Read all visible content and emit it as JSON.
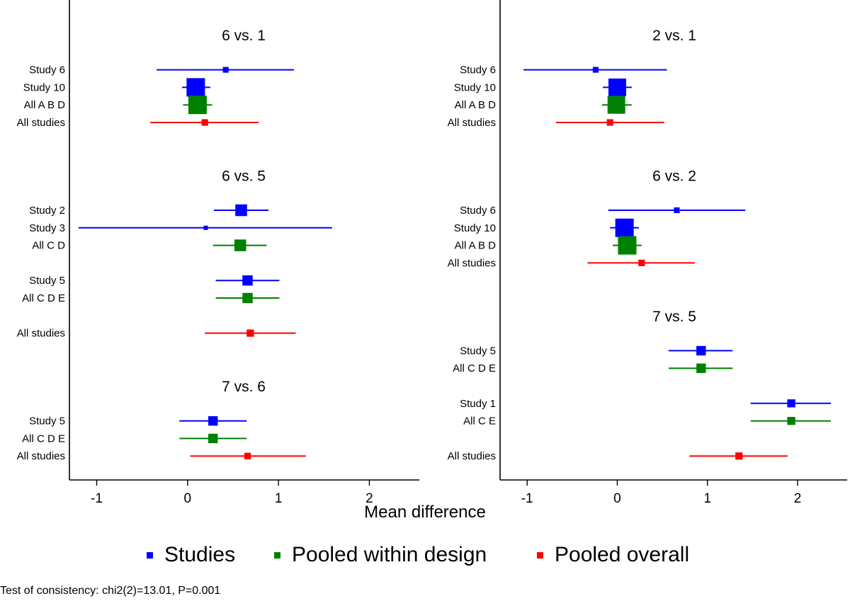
{
  "chart_data": {
    "type": "forest",
    "xlabel": "Mean difference",
    "xlim": [
      -1.3,
      2.55
    ],
    "xticks": [
      -1,
      0,
      1,
      2
    ],
    "xtick_labels": [
      "-1",
      "0",
      "1",
      "2"
    ],
    "colors": {
      "study": "#0000ff",
      "design": "#008000",
      "overall": "#ff0000"
    },
    "legend": [
      {
        "name": "Studies",
        "kind": "study",
        "color": "#0000ff"
      },
      {
        "name": "Pooled within design",
        "kind": "design",
        "color": "#008000"
      },
      {
        "name": "Pooled overall",
        "kind": "overall",
        "color": "#ff0000"
      }
    ],
    "panels": [
      {
        "position": "left",
        "rows": [
          {
            "type": "title",
            "text": "6 vs. 1"
          },
          {
            "type": "gap"
          },
          {
            "type": "row",
            "label": "Study 6",
            "kind": "study",
            "est": 0.42,
            "lo": -0.34,
            "hi": 1.17,
            "weight": 0.15
          },
          {
            "type": "row",
            "label": "Study 10",
            "kind": "study",
            "est": 0.09,
            "lo": -0.06,
            "hi": 0.25,
            "weight": 1.0
          },
          {
            "type": "row",
            "label": "All A B D",
            "kind": "design",
            "est": 0.11,
            "lo": -0.05,
            "hi": 0.27,
            "weight": 1.0
          },
          {
            "type": "row",
            "label": "All studies",
            "kind": "overall",
            "est": 0.19,
            "lo": -0.41,
            "hi": 0.78,
            "weight": 0.2
          },
          {
            "type": "gap"
          },
          {
            "type": "gap"
          },
          {
            "type": "title",
            "text": "6 vs. 5"
          },
          {
            "type": "gap"
          },
          {
            "type": "row",
            "label": "Study 2",
            "kind": "study",
            "est": 0.59,
            "lo": 0.29,
            "hi": 0.89,
            "weight": 0.55
          },
          {
            "type": "row",
            "label": "Study 3",
            "kind": "study",
            "est": 0.2,
            "lo": -1.2,
            "hi": 1.59,
            "weight": 0.05
          },
          {
            "type": "row",
            "label": "All C D",
            "kind": "design",
            "est": 0.58,
            "lo": 0.28,
            "hi": 0.87,
            "weight": 0.55
          },
          {
            "type": "gap"
          },
          {
            "type": "row",
            "label": "Study 5",
            "kind": "study",
            "est": 0.66,
            "lo": 0.31,
            "hi": 1.01,
            "weight": 0.45
          },
          {
            "type": "row",
            "label": "All C D E",
            "kind": "design",
            "est": 0.66,
            "lo": 0.31,
            "hi": 1.01,
            "weight": 0.45
          },
          {
            "type": "gap"
          },
          {
            "type": "row",
            "label": "All studies",
            "kind": "overall",
            "est": 0.69,
            "lo": 0.19,
            "hi": 1.19,
            "weight": 0.25
          },
          {
            "type": "gap"
          },
          {
            "type": "gap"
          },
          {
            "type": "title",
            "text": "7 vs. 6"
          },
          {
            "type": "gap"
          },
          {
            "type": "row",
            "label": "Study 5",
            "kind": "study",
            "est": 0.28,
            "lo": -0.09,
            "hi": 0.65,
            "weight": 0.4
          },
          {
            "type": "row",
            "label": "All C D E",
            "kind": "design",
            "est": 0.28,
            "lo": -0.09,
            "hi": 0.65,
            "weight": 0.4
          },
          {
            "type": "row",
            "label": "All studies",
            "kind": "overall",
            "est": 0.66,
            "lo": 0.03,
            "hi": 1.3,
            "weight": 0.2
          }
        ]
      },
      {
        "position": "right",
        "rows": [
          {
            "type": "title",
            "text": "2 vs. 1"
          },
          {
            "type": "gap"
          },
          {
            "type": "row",
            "label": "Study 6",
            "kind": "study",
            "est": -0.24,
            "lo": -1.04,
            "hi": 0.55,
            "weight": 0.15
          },
          {
            "type": "row",
            "label": "Study 10",
            "kind": "study",
            "est": 0.0,
            "lo": -0.16,
            "hi": 0.16,
            "weight": 0.95
          },
          {
            "type": "row",
            "label": "All A B D",
            "kind": "design",
            "est": -0.01,
            "lo": -0.17,
            "hi": 0.16,
            "weight": 0.95
          },
          {
            "type": "row",
            "label": "All studies",
            "kind": "overall",
            "est": -0.08,
            "lo": -0.68,
            "hi": 0.52,
            "weight": 0.2
          },
          {
            "type": "gap"
          },
          {
            "type": "gap"
          },
          {
            "type": "title",
            "text": "6 vs. 2"
          },
          {
            "type": "gap"
          },
          {
            "type": "row",
            "label": "Study 6",
            "kind": "study",
            "est": 0.66,
            "lo": -0.1,
            "hi": 1.42,
            "weight": 0.15
          },
          {
            "type": "row",
            "label": "Study 10",
            "kind": "study",
            "est": 0.08,
            "lo": -0.08,
            "hi": 0.24,
            "weight": 1.0
          },
          {
            "type": "row",
            "label": "All A B D",
            "kind": "design",
            "est": 0.11,
            "lo": -0.05,
            "hi": 0.27,
            "weight": 1.0
          },
          {
            "type": "row",
            "label": "All studies",
            "kind": "overall",
            "est": 0.27,
            "lo": -0.33,
            "hi": 0.86,
            "weight": 0.2
          },
          {
            "type": "gap"
          },
          {
            "type": "gap"
          },
          {
            "type": "title",
            "text": "7 vs. 5"
          },
          {
            "type": "gap"
          },
          {
            "type": "row",
            "label": "Study 5",
            "kind": "study",
            "est": 0.93,
            "lo": 0.57,
            "hi": 1.28,
            "weight": 0.4
          },
          {
            "type": "row",
            "label": "All C D E",
            "kind": "design",
            "est": 0.93,
            "lo": 0.57,
            "hi": 1.28,
            "weight": 0.4
          },
          {
            "type": "gap"
          },
          {
            "type": "row",
            "label": "Study 1",
            "kind": "study",
            "est": 1.93,
            "lo": 1.48,
            "hi": 2.37,
            "weight": 0.3
          },
          {
            "type": "row",
            "label": "All C E",
            "kind": "design",
            "est": 1.93,
            "lo": 1.48,
            "hi": 2.37,
            "weight": 0.3
          },
          {
            "type": "gap"
          },
          {
            "type": "row",
            "label": "All studies",
            "kind": "overall",
            "est": 1.35,
            "lo": 0.8,
            "hi": 1.89,
            "weight": 0.25
          }
        ]
      }
    ]
  },
  "footnote": "Test of consistency: chi2(2)=13.01, P=0.001"
}
